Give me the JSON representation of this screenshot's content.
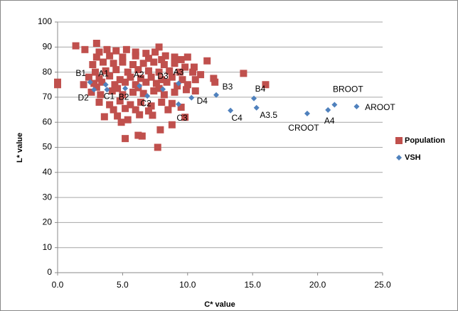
{
  "chart_data": {
    "type": "scatter",
    "x_label": "C* value",
    "y_label": "L* value",
    "xlim": [
      0,
      25
    ],
    "ylim": [
      0,
      100
    ],
    "xticks": [
      {
        "value": 0,
        "label": "0.0"
      },
      {
        "value": 5,
        "label": "5.0"
      },
      {
        "value": 10,
        "label": "10.0"
      },
      {
        "value": 15,
        "label": "15.0"
      },
      {
        "value": 20,
        "label": "20.0"
      },
      {
        "value": 25,
        "label": "25.0"
      }
    ],
    "yticks": [
      0,
      10,
      20,
      30,
      40,
      50,
      60,
      70,
      80,
      90,
      100
    ],
    "grid": true,
    "legend": "right",
    "series": [
      {
        "name": "Population",
        "color": "#c0504d",
        "marker": "square",
        "x": [
          3.2,
          3.8,
          4.5,
          5.3,
          6,
          6.8,
          7.5,
          8.3,
          9,
          3,
          4,
          5,
          6,
          7,
          8,
          9.5,
          2.7,
          3.5,
          4.3,
          5,
          5.8,
          6.6,
          7.4,
          8.2,
          9,
          9.8,
          2.9,
          3.7,
          4.5,
          5.4,
          6.2,
          7,
          7.8,
          8.6,
          9.4,
          10.4,
          11,
          2.4,
          3.2,
          4,
          4.8,
          5.6,
          6.4,
          7.2,
          8,
          8.8,
          9.6,
          10.6,
          2,
          2.8,
          3.4,
          4.4,
          5.2,
          6,
          6.8,
          7.6,
          8.4,
          9.2,
          10,
          2.6,
          3.3,
          4.2,
          5,
          5.8,
          6.6,
          7.4,
          8.2,
          9,
          9.9,
          10.6,
          3,
          4.6,
          6.2,
          7.8,
          3.2,
          4,
          4.8,
          5.6,
          6.4,
          7.2,
          8,
          8.8,
          9.5,
          4.3,
          5.2,
          6,
          7,
          8.5,
          3.6,
          4.6,
          5.4,
          4.9,
          6.3,
          7.3,
          9.8,
          0,
          0,
          1.4,
          2.1,
          3,
          5.2,
          6.2,
          6.5,
          7.7,
          7.9,
          8.8,
          14.3,
          16,
          11.5,
          10,
          10.5,
          12,
          12.1,
          7.8
        ],
        "values": [
          88,
          89,
          88.5,
          89,
          88,
          87.5,
          88,
          86.5,
          86,
          86,
          86.5,
          86,
          86.5,
          85.5,
          85,
          85,
          83,
          84,
          83.5,
          84,
          83,
          83.5,
          84,
          83,
          83.5,
          82,
          80,
          80.5,
          81,
          80,
          81,
          80.5,
          80,
          80.5,
          80,
          80,
          79,
          78,
          77.5,
          78.5,
          77,
          78,
          77.5,
          78,
          77,
          78,
          77,
          77,
          75,
          75.5,
          76,
          75,
          76,
          75,
          76,
          75.5,
          76,
          74.5,
          75,
          72,
          71,
          72.5,
          71,
          72,
          71.5,
          72.5,
          71,
          72,
          73,
          72.5,
          74,
          73.5,
          73.8,
          73.5,
          68,
          67,
          68.5,
          67,
          68,
          66.5,
          68,
          67.5,
          66,
          65,
          65.5,
          65,
          64.5,
          65,
          62.2,
          62.5,
          61,
          60,
          63,
          62.8,
          62,
          76,
          75,
          90.5,
          89,
          91.5,
          53.5,
          54.8,
          54.5,
          50,
          57,
          59,
          79.5,
          75,
          84.5,
          86,
          82,
          77.5,
          76,
          90
        ]
      },
      {
        "name": "VSH",
        "color": "#4f81bd",
        "marker": "diamond",
        "x": [
          2.5,
          3.7,
          2.8,
          3.8,
          5.2,
          6.3,
          6.9,
          8.1,
          9.3,
          9.3,
          10.3,
          12.2,
          13.3,
          15.1,
          15.3,
          19.2,
          20.8,
          21.3,
          23.0
        ],
        "values": [
          76,
          75,
          73,
          73,
          73.5,
          74.5,
          70.5,
          73.2,
          75.5,
          67.2,
          69.8,
          70.9,
          64.7,
          69.5,
          65.8,
          63.5,
          64.9,
          67,
          66.3
        ],
        "labels": [
          "B1",
          "A1",
          "D2",
          "C1",
          "B2",
          "A2",
          "C2",
          "D3",
          "A3",
          "C3",
          "D4",
          "B3",
          "C4",
          "B4",
          "A3.5",
          "CROOT",
          "A4",
          "BROOT",
          "AROOT"
        ]
      }
    ]
  }
}
